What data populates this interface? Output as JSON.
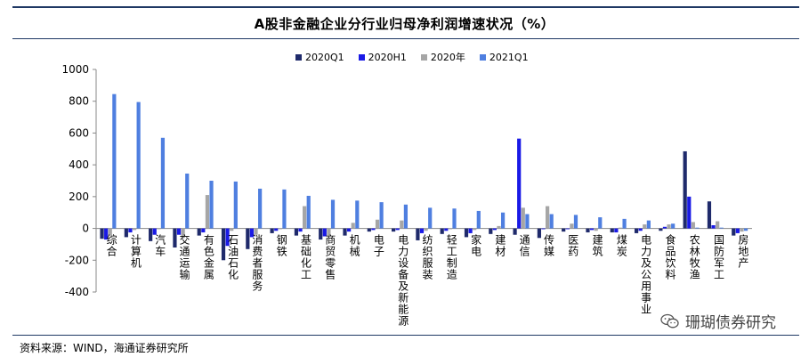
{
  "title": "A股非金融企业分行业归母净利润增速状况（%）",
  "source": "资料来源：WIND，海通证券研究所",
  "watermark": {
    "text": "珊瑚债券研究",
    "icon": "wechat-icon"
  },
  "colors": {
    "s0": "#1f2a6b",
    "s1": "#1a1ae6",
    "s2": "#a6a6a6",
    "s3": "#4f7fe0",
    "rule": "#1f3864"
  },
  "chart_data": {
    "type": "bar",
    "title": "A股非金融企业分行业归母净利润增速状况（%）",
    "ylim": [
      -400,
      1000
    ],
    "yticks": [
      -400,
      -200,
      0,
      200,
      400,
      600,
      800,
      1000
    ],
    "grid": false,
    "legend_position": "top",
    "categories": [
      "综合",
      "计算机",
      "汽车",
      "交通运输",
      "有色金属",
      "石油石化",
      "消费者服务",
      "钢铁",
      "基础化工",
      "商贸零售",
      "机械",
      "电子",
      "电力设备及新能源",
      "纺织服装",
      "轻工制造",
      "家电",
      "建材",
      "通信",
      "传媒",
      "医药",
      "建筑",
      "煤炭",
      "电力及公用事业",
      "食品饮料",
      "农林牧渔",
      "国防军工",
      "房地产"
    ],
    "series": [
      {
        "name": "2020Q1",
        "values": [
          -65,
          -55,
          -80,
          -120,
          -45,
          -200,
          -130,
          -30,
          -45,
          -70,
          -45,
          -20,
          -20,
          -75,
          -35,
          -55,
          -35,
          -40,
          -60,
          -20,
          -25,
          -25,
          -30,
          -15,
          485,
          170,
          -45
        ]
      },
      {
        "name": "2020H1",
        "values": [
          -70,
          -25,
          -40,
          -40,
          -25,
          -110,
          -55,
          -15,
          -20,
          -50,
          -20,
          -10,
          -10,
          -30,
          -15,
          -30,
          -10,
          565,
          -5,
          -5,
          -10,
          -25,
          -15,
          10,
          200,
          20,
          -30
        ]
      },
      {
        "name": "2020年",
        "values": [
          -45,
          -10,
          -5,
          -60,
          210,
          -15,
          -40,
          -5,
          140,
          -45,
          35,
          55,
          50,
          -15,
          -5,
          -10,
          15,
          130,
          140,
          30,
          -15,
          5,
          25,
          25,
          40,
          45,
          -20
        ]
      },
      {
        "name": "2021Q1",
        "values": [
          845,
          795,
          570,
          345,
          300,
          295,
          250,
          245,
          205,
          180,
          175,
          165,
          150,
          130,
          125,
          110,
          100,
          90,
          90,
          85,
          70,
          60,
          50,
          30,
          5,
          5,
          -15
        ]
      }
    ]
  }
}
